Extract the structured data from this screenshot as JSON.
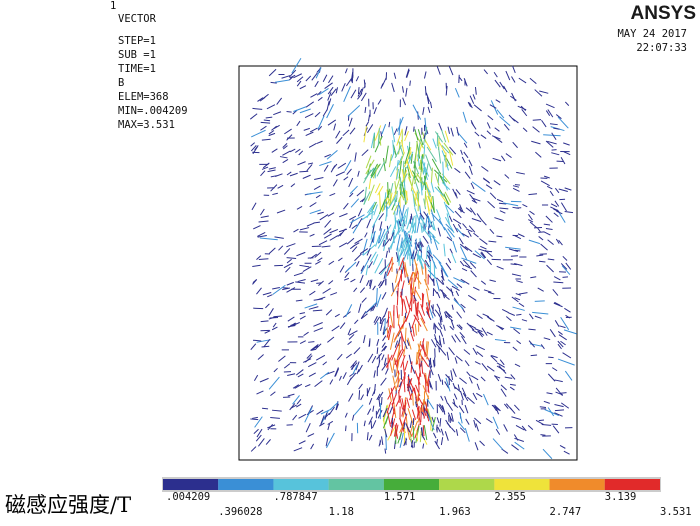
{
  "plot_number": "1",
  "header": [
    "VECTOR",
    "STEP=1",
    "SUB =1",
    "TIME=1",
    "B",
    "ELEM=368",
    "MIN=.004209",
    "MAX=3.531"
  ],
  "logo": "ANSYS",
  "date": "MAY 24 2017",
  "time": "22:07:33",
  "legend": {
    "title": "磁感应强度/T",
    "colors": [
      "#2c2f8e",
      "#3a8fd6",
      "#57c3db",
      "#63c4a2",
      "#46ad3a",
      "#aed84a",
      "#efe33a",
      "#f08b2b",
      "#e12a2a"
    ],
    "levels": [
      {
        "value": 0.004209,
        "label": ".004209"
      },
      {
        "value": 0.396028,
        "label": ".396028"
      },
      {
        "value": 0.787847,
        "label": ".787847"
      },
      1.18,
      1.571,
      1.963,
      2.355,
      2.747,
      3.139,
      3.531
    ]
  }
}
